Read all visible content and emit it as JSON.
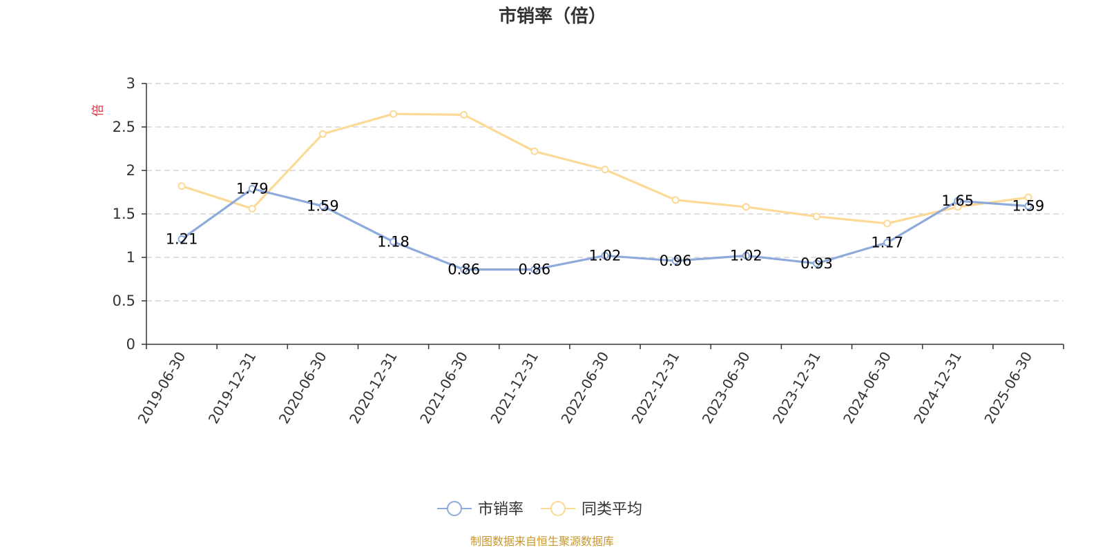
{
  "chart_data": {
    "type": "line",
    "title": "市销率（倍）",
    "ylabel": "倍",
    "xlabel": "",
    "categories": [
      "2019-06-30",
      "2019-12-31",
      "2020-06-30",
      "2020-12-31",
      "2021-06-30",
      "2021-12-31",
      "2022-06-30",
      "2022-12-31",
      "2023-06-30",
      "2023-12-31",
      "2024-06-30",
      "2024-12-31",
      "2025-06-30"
    ],
    "ylim": [
      0,
      3
    ],
    "yticks": [
      0,
      0.5,
      1,
      1.5,
      2,
      2.5,
      3
    ],
    "ytick_labels": [
      "0",
      "0.5",
      "1",
      "1.5",
      "2",
      "2.5",
      "3"
    ],
    "grid": true,
    "legend_position": "bottom-center",
    "series": [
      {
        "name": "市销率",
        "color": "#8eaadb",
        "values": [
          1.21,
          1.79,
          1.59,
          1.18,
          0.86,
          0.86,
          1.02,
          0.96,
          1.02,
          0.93,
          1.17,
          1.65,
          1.59
        ],
        "labels": [
          "1.21",
          "1.79",
          "1.59",
          "1.18",
          "0.86",
          "0.86",
          "1.02",
          "0.96",
          "1.02",
          "0.93",
          "1.17",
          "1.65",
          "1.59"
        ]
      },
      {
        "name": "同类平均",
        "color": "#fcd994",
        "values": [
          1.82,
          1.56,
          2.42,
          2.65,
          2.64,
          2.22,
          2.01,
          1.66,
          1.58,
          1.47,
          1.39,
          1.58,
          1.69
        ]
      }
    ],
    "source": "制图数据来自恒生聚源数据库",
    "colors": {
      "axis": "#333333",
      "grid": "#cccccc",
      "ylabel": "#e8323c",
      "source": "#c9962a"
    }
  }
}
